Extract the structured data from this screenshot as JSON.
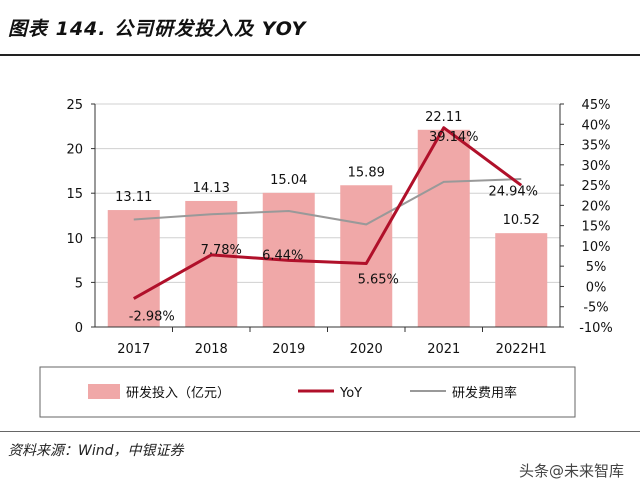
{
  "title": "图表 144. 公司研发投入及 YOY",
  "source": "资料来源：Wind，中银证券",
  "watermark": "头条@未来智库",
  "colors": {
    "bar": "#f0a8a8",
    "yoy": "#b0102a",
    "ratio": "#999999",
    "grid": "#d0d0d0"
  },
  "chart_data": {
    "type": "bar",
    "categories": [
      "2017",
      "2018",
      "2019",
      "2020",
      "2021",
      "2022H1"
    ],
    "series": [
      {
        "name": "研发投入（亿元）",
        "type": "bar",
        "axis": "left",
        "values": [
          13.11,
          14.13,
          15.04,
          15.89,
          22.11,
          10.52
        ]
      },
      {
        "name": "YoY",
        "type": "line",
        "axis": "right",
        "values": [
          -2.98,
          7.78,
          6.44,
          5.65,
          39.14,
          24.94
        ],
        "labels": [
          "-2.98%",
          "7.78%",
          "6.44%",
          "5.65%",
          "39.14%",
          "24.94%"
        ]
      },
      {
        "name": "研发费用率",
        "type": "line",
        "axis": "right",
        "values": [
          16.5,
          17.8,
          18.6,
          15.3,
          25.8,
          26.5
        ]
      }
    ],
    "yleft": {
      "min": 0,
      "max": 25,
      "ticks": [
        "0",
        "5",
        "10",
        "15",
        "20",
        "25"
      ]
    },
    "yright": {
      "min": -10,
      "max": 45,
      "ticks": [
        "-10%",
        "-5%",
        "0%",
        "5%",
        "10%",
        "15%",
        "20%",
        "25%",
        "30%",
        "35%",
        "40%",
        "45%"
      ]
    },
    "legend": [
      "研发投入（亿元）",
      "YoY",
      "研发费用率"
    ],
    "legend_position": "bottom",
    "grid": true
  }
}
